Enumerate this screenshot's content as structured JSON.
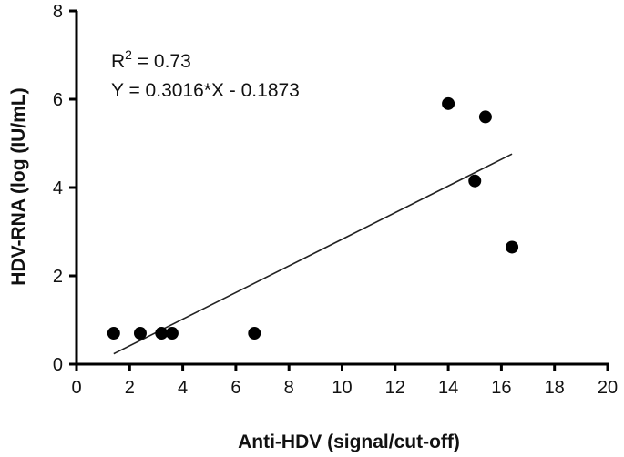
{
  "chart_data": {
    "type": "scatter",
    "title": "",
    "xlabel": "Anti-HDV (signal/cut-off)",
    "ylabel": "HDV-RNA (log (IU/mL)",
    "xlim": [
      0,
      20
    ],
    "ylim": [
      0,
      8
    ],
    "x_ticks": [
      "0",
      "2",
      "4",
      "6",
      "8",
      "10",
      "12",
      "14",
      "16",
      "18",
      "20"
    ],
    "y_ticks": [
      "0",
      "2",
      "4",
      "6",
      "8"
    ],
    "grid": false,
    "marker_color": "#000000",
    "points": [
      {
        "x": 1.4,
        "y": 0.7
      },
      {
        "x": 2.4,
        "y": 0.7
      },
      {
        "x": 3.2,
        "y": 0.7
      },
      {
        "x": 3.6,
        "y": 0.7
      },
      {
        "x": 6.7,
        "y": 0.7
      },
      {
        "x": 14.0,
        "y": 5.9
      },
      {
        "x": 15.0,
        "y": 4.15
      },
      {
        "x": 15.4,
        "y": 5.6
      },
      {
        "x": 16.4,
        "y": 2.65
      }
    ],
    "fit_line": {
      "slope": 0.3016,
      "intercept": -0.1873,
      "x_range": [
        1.4,
        16.4
      ]
    },
    "annotations": {
      "r2_prefix": "R",
      "r2_sup": "2",
      "r2_value": " = 0.73",
      "equation": "Y = 0.3016*X - 0.1873"
    }
  }
}
